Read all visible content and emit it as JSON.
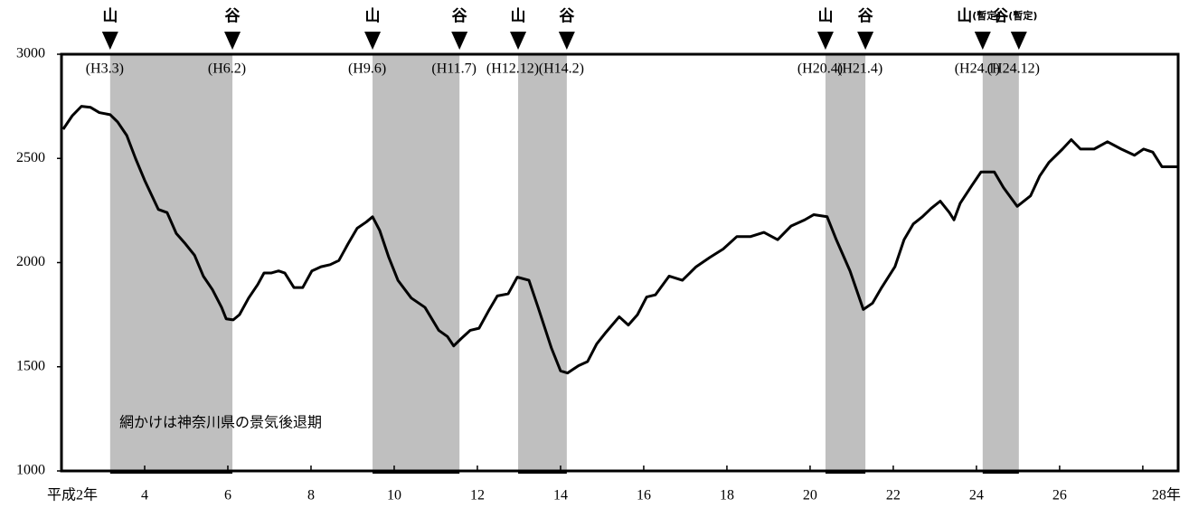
{
  "chart_data": {
    "type": "line",
    "annotation": "網かけは神奈川県の景気後退期",
    "xlim": [
      2,
      28.85
    ],
    "xticks": [
      {
        "value": 2,
        "label": "平成2年"
      },
      4,
      6,
      8,
      10,
      12,
      14,
      16,
      18,
      20,
      22,
      24,
      26,
      {
        "value": 28,
        "label": "28年"
      }
    ],
    "ylim": [
      1000,
      3000
    ],
    "yticks": [
      1000,
      1500,
      2000,
      2500,
      3000
    ],
    "grid": false,
    "shade_color": "#bfbfbf",
    "turning_points": [
      {
        "label": "山",
        "date": "(H3.3)",
        "x": 3.17
      },
      {
        "label": "谷",
        "date": "(H6.2)",
        "x": 6.11
      },
      {
        "label": "山",
        "date": "(H9.6)",
        "x": 9.48
      },
      {
        "label": "谷",
        "date": "(H11.7)",
        "x": 11.57
      },
      {
        "label": "山",
        "date": "(H12.12)",
        "x": 12.98
      },
      {
        "label": "谷",
        "date": "(H14.2)",
        "x": 14.15
      },
      {
        "label": "山",
        "date": "(H20.4)",
        "x": 20.37
      },
      {
        "label": "谷",
        "date": "(H21.4)",
        "x": 21.33
      },
      {
        "label": "山",
        "note": "(暫定)",
        "date": "(H24.1)",
        "x": 24.15
      },
      {
        "label": "谷",
        "note": "(暫定)",
        "date": "(H24.12)",
        "x": 25.02
      }
    ],
    "series": [
      {
        "color": "#000000",
        "x": [
          2.04,
          2.26,
          2.48,
          2.7,
          2.91,
          3.17,
          3.35,
          3.57,
          3.78,
          4.0,
          4.33,
          4.54,
          4.76,
          4.98,
          5.2,
          5.41,
          5.63,
          5.85,
          5.96,
          6.13,
          6.28,
          6.5,
          6.72,
          6.87,
          7.04,
          7.22,
          7.37,
          7.59,
          7.8,
          8.02,
          8.24,
          8.46,
          8.67,
          8.89,
          9.11,
          9.33,
          9.48,
          9.65,
          9.87,
          10.09,
          10.41,
          10.74,
          11.07,
          11.28,
          11.43,
          11.61,
          11.83,
          12.04,
          12.26,
          12.48,
          12.74,
          12.96,
          13.24,
          13.46,
          13.78,
          14.0,
          14.17,
          14.43,
          14.65,
          14.87,
          15.09,
          15.41,
          15.63,
          15.85,
          16.07,
          16.28,
          16.61,
          16.93,
          17.26,
          17.59,
          17.91,
          18.24,
          18.57,
          18.89,
          19.22,
          19.54,
          19.87,
          20.09,
          20.41,
          20.63,
          20.96,
          21.28,
          21.5,
          21.72,
          22.04,
          22.26,
          22.48,
          22.7,
          22.91,
          23.13,
          23.35,
          23.46,
          23.61,
          23.89,
          24.11,
          24.43,
          24.65,
          24.98,
          25.3,
          25.52,
          25.74,
          26.07,
          26.28,
          26.5,
          26.83,
          27.15,
          27.48,
          27.8,
          28.02,
          28.24,
          28.46,
          28.83
        ],
        "values": [
          2640,
          2705,
          2750,
          2745,
          2720,
          2710,
          2675,
          2610,
          2500,
          2395,
          2255,
          2240,
          2140,
          2090,
          2035,
          1935,
          1870,
          1785,
          1730,
          1725,
          1750,
          1830,
          1895,
          1950,
          1950,
          1960,
          1950,
          1880,
          1880,
          1960,
          1980,
          1990,
          2010,
          2090,
          2165,
          2195,
          2220,
          2155,
          2025,
          1915,
          1830,
          1785,
          1675,
          1645,
          1600,
          1635,
          1675,
          1685,
          1765,
          1840,
          1850,
          1930,
          1915,
          1785,
          1590,
          1480,
          1470,
          1505,
          1525,
          1610,
          1665,
          1740,
          1700,
          1750,
          1835,
          1845,
          1935,
          1915,
          1980,
          2025,
          2065,
          2125,
          2125,
          2145,
          2110,
          2175,
          2205,
          2230,
          2220,
          2110,
          1960,
          1775,
          1805,
          1880,
          1980,
          2110,
          2185,
          2220,
          2260,
          2295,
          2240,
          2205,
          2285,
          2370,
          2435,
          2435,
          2360,
          2270,
          2320,
          2415,
          2480,
          2545,
          2590,
          2545,
          2545,
          2580,
          2545,
          2515,
          2545,
          2530,
          2460,
          2460
        ]
      }
    ]
  }
}
